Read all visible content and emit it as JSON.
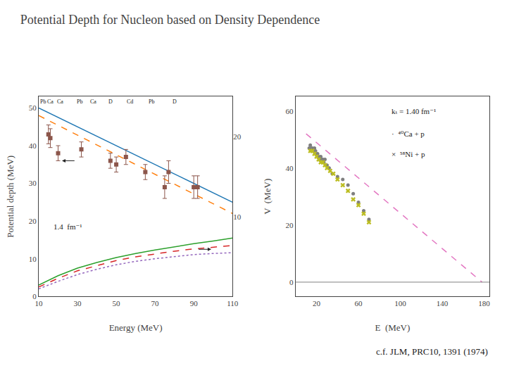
{
  "title": "Potential Depth for Nucleon based on Density Dependence",
  "subtitle": "c.f. JLM, PRC10, 1391 (1974)",
  "chart_data": [
    {
      "type": "line",
      "xlabel": "Energy (MeV)",
      "ylabel": "Potential depth (MeV)",
      "xlim": [
        10,
        110
      ],
      "ylim": [
        0,
        53
      ],
      "xticks": [
        10,
        30,
        50,
        70,
        90,
        110
      ],
      "yticks": [
        0,
        10,
        20,
        30,
        40,
        50
      ],
      "y2lim": [
        0,
        25
      ],
      "y2ticks": [
        10,
        20
      ],
      "grid": false,
      "series": [
        {
          "type": "line",
          "line_style": "solid",
          "x": [
            10,
            110
          ],
          "values": [
            50,
            25
          ]
        },
        {
          "type": "line",
          "line_style": "dashed",
          "x": [
            10,
            110
          ],
          "values": [
            48,
            22
          ]
        },
        {
          "type": "line",
          "line_style": "solid",
          "x": [
            10,
            20,
            30,
            40,
            50,
            60,
            70,
            80,
            90,
            100,
            110
          ],
          "values": [
            3.0,
            5.5,
            7.5,
            9.0,
            10.3,
            11.4,
            12.3,
            13.2,
            14.0,
            14.7,
            15.5
          ]
        },
        {
          "type": "line",
          "line_style": "dashed",
          "x": [
            10,
            20,
            30,
            40,
            50,
            60,
            70,
            80,
            90,
            100,
            110
          ],
          "values": [
            2.5,
            4.8,
            6.8,
            8.2,
            9.5,
            10.5,
            11.3,
            12.0,
            12.6,
            13.1,
            13.5
          ]
        },
        {
          "type": "line",
          "line_style": "dotted",
          "x": [
            10,
            20,
            30,
            40,
            50,
            60,
            70,
            80,
            90,
            100,
            110
          ],
          "values": [
            2.0,
            4.0,
            5.8,
            7.2,
            8.4,
            9.3,
            10.0,
            10.6,
            11.1,
            11.4,
            11.6
          ]
        },
        {
          "type": "scatter",
          "marker": "square",
          "x": [
            15,
            16,
            20,
            32,
            47,
            50,
            55,
            65,
            75,
            77,
            90,
            92
          ],
          "values": [
            43,
            42,
            38,
            39,
            36,
            35,
            37,
            33,
            29,
            33,
            29,
            29
          ],
          "error": [
            2.5,
            2.5,
            2.0,
            2.0,
            2.0,
            2.0,
            2.0,
            2.0,
            3.0,
            3.0,
            3.0,
            3.0
          ]
        }
      ],
      "arrows": [
        {
          "x_from": 29,
          "x_to": 22,
          "y": 36
        },
        {
          "x_from": 92,
          "x_to": 99,
          "y": 12.5
        }
      ],
      "annotations": [
        {
          "text": "1.4  fm⁻¹",
          "x": 17,
          "y": 17
        }
      ],
      "top_labels": [
        {
          "text": "Pb",
          "x": 12,
          "y": 50.5
        },
        {
          "text": "Ca",
          "x": 16,
          "y": 50.5
        },
        {
          "text": "Ca",
          "x": 21,
          "y": 50.5
        },
        {
          "text": "Pb",
          "x": 31,
          "y": 50.5
        },
        {
          "text": "Ca",
          "x": 38,
          "y": 50.5
        },
        {
          "text": "D",
          "x": 47,
          "y": 50.5
        },
        {
          "text": "Cd",
          "x": 57,
          "y": 50.5
        },
        {
          "text": "Pb",
          "x": 68,
          "y": 50.5
        },
        {
          "text": "D",
          "x": 80,
          "y": 50.5
        }
      ]
    },
    {
      "type": "scatter",
      "xlabel": "E  (MeV)",
      "ylabel": "V  (MeV)",
      "xlim": [
        0,
        185
      ],
      "ylim": [
        -5,
        65
      ],
      "xticks": [
        20,
        60,
        100,
        140,
        180
      ],
      "yticks": [
        0,
        20,
        40,
        60
      ],
      "grid": false,
      "hline": 0,
      "series": [
        {
          "type": "line",
          "line_style": "dashed",
          "x": [
            10,
            178
          ],
          "values": [
            52.0,
            0.0
          ]
        },
        {
          "type": "scatter",
          "marker": "dot",
          "x": [
            13,
            14,
            15,
            16,
            17,
            18,
            19,
            20,
            21,
            22,
            23,
            24,
            25,
            26,
            27,
            28,
            30,
            32,
            35,
            40,
            45,
            50,
            55,
            60,
            65,
            70
          ],
          "values": [
            47,
            48,
            47,
            47,
            46,
            47,
            46,
            45,
            45,
            44,
            43,
            44,
            43,
            43,
            42,
            43,
            41,
            40,
            38,
            37,
            36,
            34,
            31,
            28,
            25,
            22
          ]
        },
        {
          "type": "scatter",
          "marker": "x",
          "x": [
            14,
            16,
            18,
            20,
            22,
            24,
            26,
            28,
            30,
            33,
            36,
            40,
            45,
            50,
            55,
            60,
            65,
            70
          ],
          "values": [
            46,
            46,
            45,
            44,
            43,
            42,
            42,
            41,
            40,
            39,
            38,
            36,
            34,
            32,
            29,
            27,
            24,
            21
          ]
        }
      ],
      "annotations": [
        {
          "text": "kₜ = 1.40 fm⁻¹",
          "x": 90,
          "y": 58
        },
        {
          "text": "·  ⁴⁰Ca + p",
          "x": 90,
          "y": 50
        },
        {
          "text": "×  ⁵⁸Ni + p",
          "x": 90,
          "y": 43
        }
      ]
    }
  ]
}
